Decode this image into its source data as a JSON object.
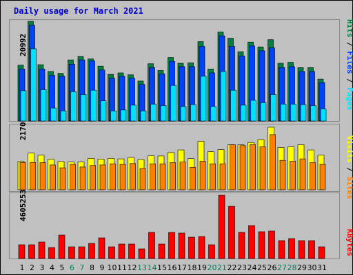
{
  "chart_data": {
    "type": "bar",
    "title": "Daily usage for March 2021",
    "colors": {
      "background": "#c0c0c0",
      "frame": "#ffffff",
      "hits": "#008040",
      "files": "#0040ff",
      "pages": "#00e0ff",
      "visits": "#ffff00",
      "sites": "#ff8000",
      "kbytes": "#ff0000",
      "title": "#0000cc",
      "weekday": "#000000",
      "weekend": "#00805c"
    },
    "categories": [
      "1",
      "2",
      "3",
      "4",
      "5",
      "6",
      "7",
      "8",
      "9",
      "10",
      "11",
      "12",
      "13",
      "14",
      "15",
      "16",
      "17",
      "18",
      "19",
      "20",
      "21",
      "22",
      "23",
      "24",
      "25",
      "26",
      "27",
      "28",
      "29",
      "30",
      "31"
    ],
    "weekend_days": [
      "6",
      "7",
      "13",
      "14",
      "20",
      "21",
      "27",
      "28"
    ],
    "panels": [
      {
        "name": "hits-files-pages",
        "ymax": 20992,
        "ymax_label": "20992",
        "legend": [
          "Pages",
          "Files",
          "Hits"
        ],
        "series": [
          {
            "name": "Hits",
            "values": [
              11600,
              20700,
              11700,
              10300,
              9900,
              12700,
              13400,
              12900,
              11400,
              9700,
              10000,
              9600,
              8300,
              11900,
              10500,
              13200,
              12000,
              12100,
              16500,
              10800,
              18500,
              17200,
              14400,
              16400,
              15400,
              16900,
              12000,
              12200,
              11100,
              11100,
              8700
            ]
          },
          {
            "name": "Files",
            "values": [
              10800,
              19900,
              10800,
              9500,
              9300,
              11800,
              12700,
              12500,
              10600,
              8900,
              9300,
              8900,
              7600,
              11100,
              9800,
              12400,
              11300,
              11300,
              15500,
              10000,
              17700,
              15500,
              13500,
              15600,
              14600,
              15200,
              11100,
              11300,
              10300,
              10300,
              8000
            ]
          },
          {
            "name": "Pages",
            "values": [
              6300,
              15000,
              6500,
              2700,
              2100,
              6100,
              5500,
              6400,
              4200,
              2100,
              2300,
              3300,
              2100,
              3500,
              3200,
              7400,
              3000,
              3400,
              9300,
              3000,
              10300,
              6400,
              3300,
              4300,
              3800,
              5500,
              3500,
              3500,
              3400,
              3200,
              2500
            ]
          }
        ]
      },
      {
        "name": "visits-sites",
        "ymax": 2170,
        "ymax_label": "2170",
        "legend": [
          "Sites",
          "Visits"
        ],
        "series": [
          {
            "name": "Visits",
            "values": [
              980,
              1270,
              1200,
              1060,
              980,
              960,
              960,
              1090,
              1060,
              1090,
              1070,
              1120,
              1050,
              1180,
              1170,
              1290,
              1380,
              1080,
              1680,
              1320,
              1390,
              1560,
              1560,
              1640,
              1740,
              2170,
              1470,
              1490,
              1560,
              1380,
              1200
            ]
          },
          {
            "name": "Sites",
            "values": [
              950,
              950,
              940,
              860,
              760,
              880,
              790,
              840,
              860,
              900,
              880,
              910,
              740,
              900,
              900,
              940,
              960,
              780,
              990,
              900,
              900,
              1560,
              1530,
              1570,
              1490,
              1910,
              1020,
              990,
              1070,
              940,
              880
            ]
          }
        ]
      },
      {
        "name": "kbytes",
        "ymax": 4605253,
        "ymax_label": "4605253",
        "legend": [
          "KBytes"
        ],
        "series": [
          {
            "name": "KBytes",
            "values": [
              1000000,
              1000000,
              1200000,
              800000,
              1700000,
              850000,
              850000,
              1100000,
              1500000,
              850000,
              1050000,
              1050000,
              700000,
              1900000,
              1050000,
              1900000,
              1850000,
              1550000,
              1600000,
              1000000,
              4605253,
              3800000,
              1900000,
              2400000,
              1950000,
              2000000,
              1300000,
              1450000,
              1300000,
              1300000,
              850000
            ]
          }
        ]
      }
    ]
  }
}
